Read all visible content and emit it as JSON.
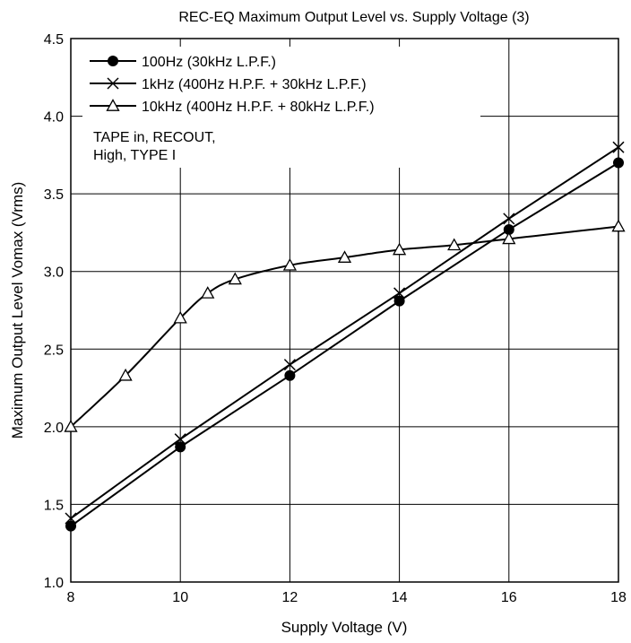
{
  "chart_data": {
    "type": "line",
    "title": "REC-EQ Maximum Output Level vs. Supply Voltage (3)",
    "xlabel": "Supply Voltage  (V)",
    "ylabel": "Maximum Output Level  Vomax  (Vrms)",
    "xlim": [
      8,
      18
    ],
    "ylim": [
      1.0,
      4.5
    ],
    "xticks": [
      "8",
      "10",
      "12",
      "14",
      "16",
      "18"
    ],
    "yticks": [
      "1.0",
      "1.5",
      "2.0",
      "2.5",
      "3.0",
      "3.5",
      "4.0",
      "4.5"
    ],
    "grid": true,
    "legend_position": "top-left",
    "series": [
      {
        "name": "100Hz (30kHz L.P.F.)",
        "marker": "filled-circle",
        "x": [
          8,
          10,
          12,
          14,
          16,
          18
        ],
        "y": [
          1.36,
          1.87,
          2.33,
          2.81,
          3.27,
          3.7
        ]
      },
      {
        "name": "1kHz (400Hz H.P.F. + 30kHz L.P.F.)",
        "marker": "cross",
        "x": [
          8,
          10,
          12,
          14,
          16,
          18
        ],
        "y": [
          1.41,
          1.92,
          2.4,
          2.86,
          3.34,
          3.8
        ]
      },
      {
        "name": "10kHz (400Hz H.P.F. + 80kHz L.P.F.)",
        "marker": "open-triangle",
        "x": [
          8,
          9,
          10,
          10.5,
          11,
          12,
          13,
          14,
          15,
          16,
          18
        ],
        "y": [
          2.0,
          2.33,
          2.7,
          2.86,
          2.95,
          3.04,
          3.09,
          3.14,
          3.17,
          3.21,
          3.29
        ]
      }
    ],
    "annotation": [
      "TAPE in, RECOUT,",
      "High, TYPE I"
    ]
  }
}
